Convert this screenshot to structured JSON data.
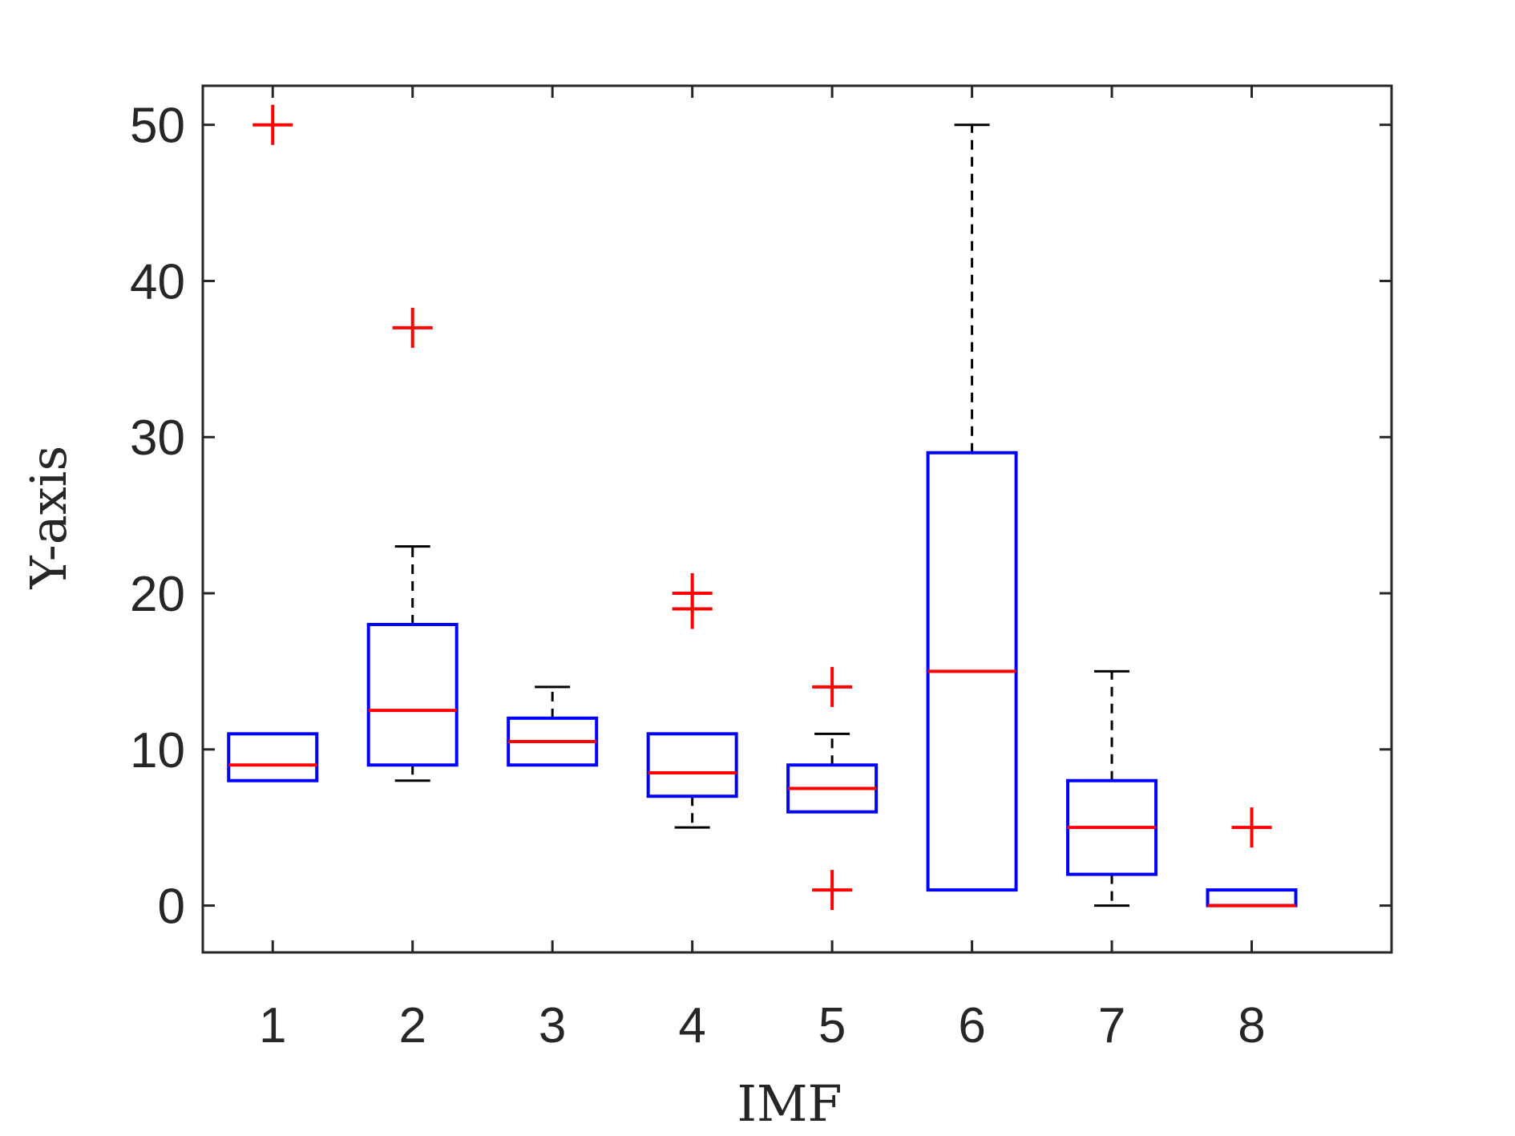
{
  "chart_data": {
    "type": "boxplot",
    "xlabel": "IMF",
    "ylabel": "Y-axis",
    "categories": [
      "1",
      "2",
      "3",
      "4",
      "5",
      "6",
      "7",
      "8"
    ],
    "ylim": [
      -3,
      52.5
    ],
    "yticks": [
      0,
      10,
      20,
      30,
      40,
      50
    ],
    "grid": false,
    "boxes": [
      {
        "label": "1",
        "whisker_low": 8,
        "q1": 8,
        "median": 9,
        "q3": 11,
        "whisker_high": 11,
        "outliers": [
          50
        ]
      },
      {
        "label": "2",
        "whisker_low": 8,
        "q1": 9,
        "median": 12.5,
        "q3": 18,
        "whisker_high": 23,
        "outliers": [
          37
        ]
      },
      {
        "label": "3",
        "whisker_low": 9,
        "q1": 9,
        "median": 10.5,
        "q3": 12,
        "whisker_high": 14,
        "outliers": []
      },
      {
        "label": "4",
        "whisker_low": 5,
        "q1": 7,
        "median": 8.5,
        "q3": 11,
        "whisker_high": 11,
        "outliers": [
          19,
          20
        ]
      },
      {
        "label": "5",
        "whisker_low": 6,
        "q1": 6,
        "median": 7.5,
        "q3": 9,
        "whisker_high": 11,
        "outliers": [
          14,
          1
        ]
      },
      {
        "label": "6",
        "whisker_low": 1,
        "q1": 1,
        "median": 15,
        "q3": 29,
        "whisker_high": 50,
        "outliers": []
      },
      {
        "label": "7",
        "whisker_low": 0,
        "q1": 2,
        "median": 5,
        "q3": 8,
        "whisker_high": 15,
        "outliers": []
      },
      {
        "label": "8",
        "whisker_low": 0,
        "q1": 0,
        "median": 0,
        "q3": 1,
        "whisker_high": 1,
        "outliers": [
          5
        ]
      }
    ],
    "colors": {
      "box": "#0000ff",
      "median": "#ff0000",
      "whisker": "#000000",
      "outlier": "#ff0000",
      "axis": "#262626"
    }
  }
}
